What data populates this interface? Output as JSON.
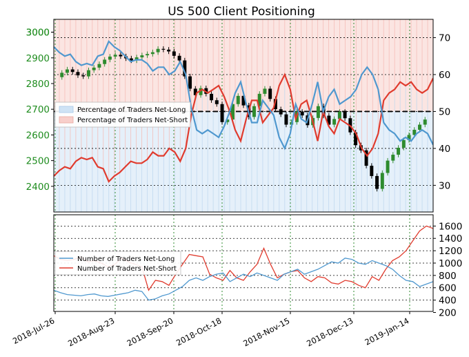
{
  "chart_data": [
    {
      "type": "line",
      "title": "US 500 Client Positioning",
      "y_left": {
        "ticks": [
          2400,
          2500,
          2600,
          2700,
          2800,
          2900,
          3000
        ],
        "color": "#1e8c1e"
      },
      "y_right": {
        "ticks": [
          30,
          40,
          50,
          60,
          70
        ]
      },
      "reference_line": 50,
      "grid": true,
      "legend_position": "center-left",
      "legend": [
        "Percentage of Traders Net-Long",
        "Percentage of Traders Net-Short"
      ],
      "colors": {
        "net_long": "#4f98cf",
        "net_short": "#e03b2e",
        "long_fill": "#cfe3f5",
        "short_fill": "#f8cfcb",
        "candle_up": "#2e8b2e",
        "candle_down": "#000000"
      },
      "price_series": [
        2825,
        2842,
        2855,
        2845,
        2832,
        2828,
        2852,
        2862,
        2876,
        2893,
        2905,
        2912,
        2906,
        2898,
        2890,
        2902,
        2910,
        2915,
        2922,
        2935,
        2932,
        2925,
        2908,
        2890,
        2828,
        2780,
        2755,
        2782,
        2760,
        2735,
        2720,
        2650,
        2660,
        2720,
        2752,
        2715,
        2670,
        2712,
        2760,
        2780,
        2740,
        2700,
        2680,
        2640,
        2650,
        2690,
        2676,
        2638,
        2666,
        2712,
        2675,
        2640,
        2662,
        2690,
        2665,
        2610,
        2560,
        2540,
        2480,
        2440,
        2390,
        2452,
        2500,
        2523,
        2550,
        2580,
        2600,
        2620,
        2640,
        2660
      ],
      "net_long_pct": [
        67.5,
        66,
        65,
        65.5,
        63.5,
        62.5,
        63,
        62.5,
        65,
        65.5,
        69,
        67.5,
        66.5,
        65,
        63.5,
        64,
        64,
        63,
        61,
        62,
        62,
        60,
        61,
        63.5,
        60,
        51,
        45,
        44,
        45,
        44,
        43,
        46,
        50,
        55,
        58,
        52,
        47,
        47,
        53,
        51,
        49,
        43,
        40,
        44,
        52,
        48,
        47,
        52,
        58,
        50,
        54,
        56,
        52,
        53,
        54,
        56,
        60,
        62,
        60,
        56,
        47,
        45,
        44,
        42,
        43,
        42,
        44,
        45,
        44,
        41
      ],
      "net_short_pct": [
        32.5,
        34,
        35,
        34.5,
        36.5,
        37.5,
        37,
        37.5,
        35,
        34.5,
        31,
        32.5,
        33.5,
        35,
        36.5,
        36,
        36,
        37,
        39,
        38,
        38,
        40,
        39,
        36.5,
        40,
        49,
        55,
        56,
        55,
        56,
        57,
        54,
        50,
        45,
        42,
        48,
        53,
        53,
        47,
        49,
        51,
        57,
        60,
        56,
        48,
        52,
        53,
        48,
        42,
        50,
        46,
        44,
        48,
        47,
        46,
        44,
        40,
        38,
        40,
        44,
        53,
        55,
        56,
        58,
        57,
        58,
        56,
        55,
        56,
        59
      ]
    },
    {
      "type": "line",
      "y_right": {
        "ticks": [
          200,
          400,
          600,
          800,
          1000,
          1200,
          1400,
          1600
        ]
      },
      "x_labels": [
        "2018-Jul-26",
        "2018-Aug-23",
        "2018-Sep-20",
        "2018-Oct-18",
        "2018-Nov-15",
        "2018-Dec-13",
        "2019-Jan-14"
      ],
      "legend_position": "upper-left",
      "legend": [
        "Number of Traders Net-Long",
        "Number of Traders Net-Short"
      ],
      "series": [
        {
          "name": "Number of Traders Net-Long",
          "values": [
            560,
            520,
            490,
            480,
            470,
            490,
            500,
            470,
            460,
            480,
            500,
            520,
            560,
            540,
            400,
            420,
            470,
            500,
            560,
            620,
            720,
            760,
            720,
            780,
            820,
            840,
            700,
            760,
            820,
            780,
            840,
            800,
            760,
            720,
            820,
            860,
            900,
            820,
            860,
            900,
            960,
            1020,
            1000,
            1080,
            1060,
            1000,
            980,
            1040,
            1000,
            960,
            900,
            800,
            720,
            700,
            620,
            660,
            700
          ]
        },
        {
          "name": "Number of Traders Net-Short",
          "values": [
            1120,
            1060,
            1040,
            1060,
            1100,
            1020,
            1040,
            1000,
            940,
            980,
            1080,
            1020,
            980,
            940,
            560,
            720,
            700,
            640,
            820,
            980,
            1140,
            1120,
            1100,
            820,
            760,
            720,
            880,
            760,
            720,
            860,
            980,
            1240,
            980,
            760,
            820,
            860,
            880,
            760,
            700,
            780,
            760,
            680,
            660,
            720,
            700,
            640,
            600,
            780,
            720,
            900,
            1040,
            1100,
            1200,
            1360,
            1520,
            1600,
            1560
          ]
        }
      ]
    }
  ]
}
